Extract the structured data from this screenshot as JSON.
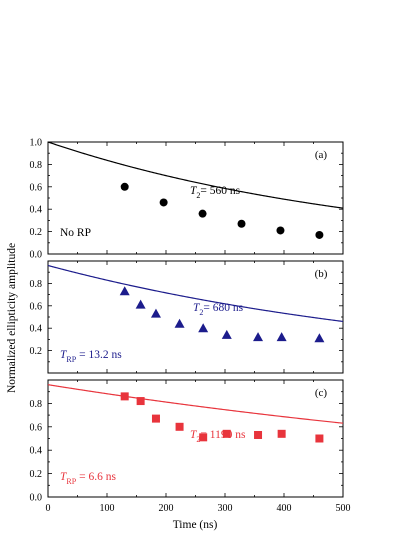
{
  "chart_data": {
    "type": "scatter",
    "xlabel": "Time (ns)",
    "ylabel": "Normalized ellipticity amplitude",
    "xlim": [
      0,
      500
    ],
    "x_ticks": [
      "0",
      "100",
      "200",
      "300",
      "400",
      "500"
    ],
    "grid": false,
    "panels": [
      {
        "label": "(a)",
        "color": "#000000",
        "marker": "circle",
        "ylim": [
          0,
          1.0
        ],
        "y_ticks": [
          "0.0",
          "0.2",
          "0.4",
          "0.6",
          "0.8",
          "1.0"
        ],
        "x": [
          130,
          196,
          262,
          328,
          394,
          460
        ],
        "y": [
          0.6,
          0.46,
          0.36,
          0.27,
          0.21,
          0.17
        ],
        "fit": {
          "amplitude": 1.0,
          "t2_ns": 560,
          "trp_ns": null
        },
        "annotation": {
          "symbol": "T",
          "sub": "2",
          "text": "= 560 ns"
        },
        "note": "No RP"
      },
      {
        "label": "(b)",
        "color": "#1c1c8c",
        "marker": "triangle",
        "ylim": [
          0,
          1.0
        ],
        "y_ticks": [
          "0.2",
          "0.4",
          "0.6",
          "0.8"
        ],
        "x": [
          130,
          157,
          183,
          223,
          263,
          303,
          356,
          396,
          460
        ],
        "y": [
          0.73,
          0.61,
          0.53,
          0.44,
          0.4,
          0.34,
          0.32,
          0.32,
          0.31
        ],
        "fit": {
          "amplitude": 0.96,
          "t2_ns": 680,
          "trp_ns": 13.2
        },
        "annotation": {
          "symbol": "T",
          "sub": "2",
          "text": "= 680 ns"
        },
        "note2": {
          "symbol": "T",
          "sub": "RP",
          "text": "= 13.2 ns"
        }
      },
      {
        "label": "(c)",
        "color": "#e8343c",
        "marker": "square",
        "ylim": [
          0,
          1.0
        ],
        "y_ticks": [
          "0.0",
          "0.2",
          "0.4",
          "0.6",
          "0.8"
        ],
        "x": [
          130,
          157,
          183,
          223,
          263,
          303,
          356,
          396,
          460
        ],
        "y": [
          0.86,
          0.82,
          0.67,
          0.6,
          0.51,
          0.54,
          0.53,
          0.54,
          0.5
        ],
        "fit": {
          "amplitude": 0.96,
          "t2_ns": 1190,
          "trp_ns": 6.6
        },
        "annotation": {
          "symbol": "T",
          "sub": "2",
          "text": "= 1190 ns"
        },
        "note2": {
          "symbol": "T",
          "sub": "RP",
          "text": "=  6.6 ns"
        }
      }
    ]
  }
}
